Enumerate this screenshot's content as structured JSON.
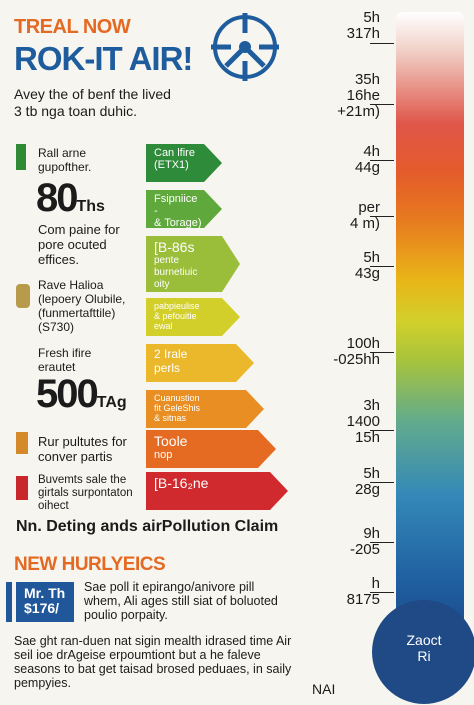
{
  "header": {
    "kicker": "TREAL NOW",
    "title": "ROK-IT AIR!",
    "subtitle_lines": [
      "Avey the of benf the lived",
      "3 tb nga toan duhic."
    ]
  },
  "rows": [
    {
      "lines": [
        "Rall arne",
        "gupofther."
      ],
      "icon": "bottle-icon"
    },
    {
      "big": "80",
      "big_unit": "Ths"
    },
    {
      "lines": [
        "Com paine for",
        "pore ocuted",
        "effices."
      ]
    },
    {
      "lines": [
        "Rave Halioa",
        "(lepoery Olubile,",
        "(funmertafttile)",
        "(S730)"
      ],
      "icon": "vase-icon"
    },
    {
      "lines": [
        "Fresh ifire",
        "erautet"
      ]
    },
    {
      "big": "500",
      "big_unit": "TAg"
    },
    {
      "lines": [
        "Rur pultutes for",
        "conver partis"
      ],
      "icon": "beaker-icon"
    },
    {
      "lines": [
        "Buvemts sale the",
        "girtals surpontaton",
        "oihect"
      ],
      "icon": "extinguisher-icon"
    }
  ],
  "bars": [
    {
      "lines": [
        "Can lfire",
        "(ETX1)"
      ],
      "color": "#2e8b3a"
    },
    {
      "lines": [
        "Fsipniice -",
        "& Torage)"
      ],
      "color": "#5fa83c"
    },
    {
      "lines": [
        "[B-86s",
        "pente",
        "burnetiuic",
        "oity"
      ],
      "color": "#9abd3a"
    },
    {
      "lines": [
        "pabpieulise",
        "& pefouitie",
        "ewal"
      ],
      "color": "#d3cf2a"
    },
    {
      "lines": [
        "2 Irale",
        "perls"
      ],
      "color": "#eab82a"
    },
    {
      "lines": [
        "Cuanustion",
        "fit GeleShis",
        "& sitnas"
      ],
      "color": "#e98e22"
    },
    {
      "lines": [
        "Toole",
        "nop"
      ],
      "color": "#e56b22"
    },
    {
      "lines": [
        "[B-16₂ne"
      ],
      "color": "#d02a2e"
    }
  ],
  "section_title": "Nn. Deting ands airPollution Claim",
  "news": {
    "title": "NEW HURLYEICS",
    "badge": [
      "Mr. Th",
      "$176/"
    ],
    "para1": "Sae poll it epirango/anivore pill whem, Ali ages still siat of boluoted poulio porpaity.",
    "para2": "Sae ght ran-duen nat sigin mealth idrased time Air seil ioe drAgeise erpoumtiont but a he faleve seasons to bat get taisad brosed peduaes, in saily pempyies."
  },
  "thermometer": {
    "ticks": [
      [
        "5h",
        "317h"
      ],
      [
        "35h",
        "16he",
        "+21m)"
      ],
      [
        "4h",
        "44g"
      ],
      [
        "per",
        "4 m)"
      ],
      [
        "5h",
        "43g"
      ],
      [
        "100h",
        "-025hh"
      ],
      [
        "3h",
        "1400",
        "15h"
      ],
      [
        "5h",
        "28g"
      ],
      [
        "9h",
        "-205"
      ],
      [
        "h",
        "8175"
      ]
    ],
    "bulb_label": [
      "Zaoct",
      "Ri"
    ],
    "footer": "NAI"
  },
  "colors": {
    "orange": "#e46a23",
    "blue": "#1f5c9e"
  }
}
